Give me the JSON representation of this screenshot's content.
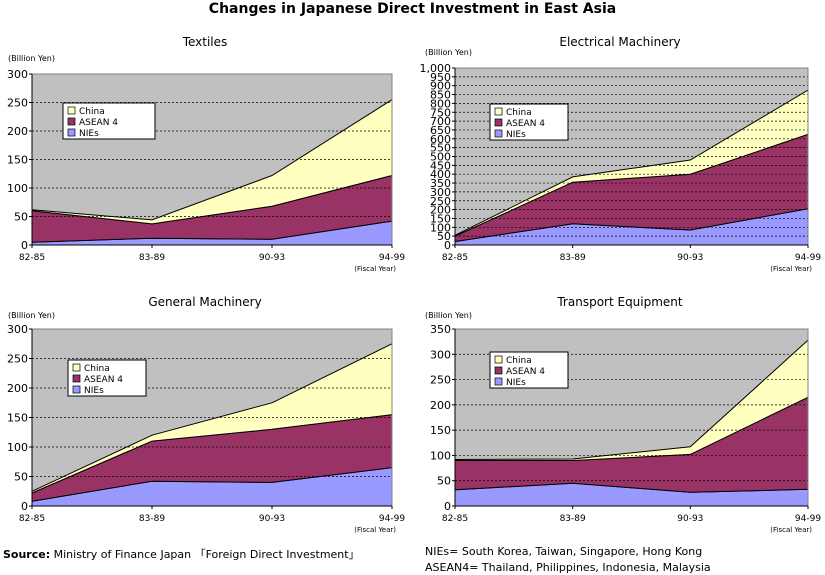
{
  "title": "Changes in Japanese Direct Investment in East Asia",
  "source_label": "Source:",
  "source_text": " Ministry of Finance Japan 「Foreign Direct Investment」",
  "notes": [
    "NIEs= South Korea, Taiwan, Singapore, Hong Kong",
    "ASEAN4= Thailand, Philippines, Indonesia, Malaysia"
  ],
  "colors": {
    "plot_bg": "#c0c0c0",
    "China": "#ffffc0",
    "ASEAN 4": "#993366",
    "NIEs": "#9999ff"
  },
  "chart_data": [
    {
      "type": "area",
      "stacked": true,
      "title": "Textiles",
      "ylabel": "(Billion Yen)",
      "xlabel": "(Fiscal Year)",
      "categories": [
        "82-85",
        "83-89",
        "90-93",
        "94-99"
      ],
      "ylim": [
        0,
        300
      ],
      "yticks": [
        0,
        50,
        100,
        150,
        200,
        250,
        300
      ],
      "ytick_labels": [
        "0",
        "50",
        "100",
        "150",
        "200",
        "250",
        "300"
      ],
      "legend": [
        "China",
        "ASEAN 4",
        "NIEs"
      ],
      "series": [
        {
          "name": "NIEs",
          "values": [
            5,
            12,
            10,
            42
          ]
        },
        {
          "name": "ASEAN 4",
          "values": [
            55,
            25,
            58,
            80
          ]
        },
        {
          "name": "China",
          "values": [
            2,
            7,
            54,
            133
          ]
        }
      ],
      "grid": true
    },
    {
      "type": "area",
      "stacked": true,
      "title": "Electrical Machinery",
      "ylabel": "(Billion Yen)",
      "xlabel": "(Fiscal Year)",
      "categories": [
        "82-85",
        "83-89",
        "90-93",
        "94-99"
      ],
      "ylim": [
        0,
        1000
      ],
      "yticks": [
        0,
        50,
        100,
        150,
        200,
        250,
        300,
        350,
        400,
        450,
        500,
        550,
        600,
        650,
        700,
        750,
        800,
        850,
        900,
        950,
        1000
      ],
      "ytick_labels": [
        "0",
        "50",
        "100",
        "150",
        "200",
        "250",
        "300",
        "350",
        "400",
        "450",
        "500",
        "550",
        "600",
        "650",
        "700",
        "750",
        "800",
        "850",
        "900",
        "950",
        "1,000"
      ],
      "legend": [
        "China",
        "ASEAN 4",
        "NIEs"
      ],
      "series": [
        {
          "name": "NIEs",
          "values": [
            20,
            120,
            85,
            205
          ]
        },
        {
          "name": "ASEAN 4",
          "values": [
            30,
            235,
            315,
            420
          ]
        },
        {
          "name": "China",
          "values": [
            5,
            30,
            80,
            250
          ]
        }
      ],
      "grid": true
    },
    {
      "type": "area",
      "stacked": true,
      "title": "General Machinery",
      "ylabel": "(Billion Yen)",
      "xlabel": "(Fiscal Year)",
      "categories": [
        "82-85",
        "83-89",
        "90-93",
        "94-99"
      ],
      "ylim": [
        0,
        300
      ],
      "yticks": [
        0,
        50,
        100,
        150,
        200,
        250,
        300
      ],
      "ytick_labels": [
        "0",
        "50",
        "100",
        "150",
        "200",
        "250",
        "300"
      ],
      "legend": [
        "China",
        "ASEAN 4",
        "NIEs"
      ],
      "series": [
        {
          "name": "NIEs",
          "values": [
            8,
            42,
            40,
            65
          ]
        },
        {
          "name": "ASEAN 4",
          "values": [
            14,
            68,
            90,
            90
          ]
        },
        {
          "name": "China",
          "values": [
            3,
            10,
            45,
            120
          ]
        }
      ],
      "grid": true
    },
    {
      "type": "area",
      "stacked": true,
      "title": "Transport Equipment",
      "ylabel": "(Billion Yen)",
      "xlabel": "(Fiscal Year)",
      "categories": [
        "82-85",
        "83-89",
        "90-93",
        "94-99"
      ],
      "ylim": [
        0,
        350
      ],
      "yticks": [
        0,
        50,
        100,
        150,
        200,
        250,
        300,
        350
      ],
      "ytick_labels": [
        "0",
        "50",
        "100",
        "150",
        "200",
        "250",
        "300",
        "350"
      ],
      "legend": [
        "China",
        "ASEAN 4",
        "NIEs"
      ],
      "series": [
        {
          "name": "NIEs",
          "values": [
            32,
            45,
            27,
            33
          ]
        },
        {
          "name": "ASEAN 4",
          "values": [
            58,
            45,
            75,
            182
          ]
        },
        {
          "name": "China",
          "values": [
            2,
            3,
            15,
            113
          ]
        }
      ],
      "grid": true
    }
  ]
}
